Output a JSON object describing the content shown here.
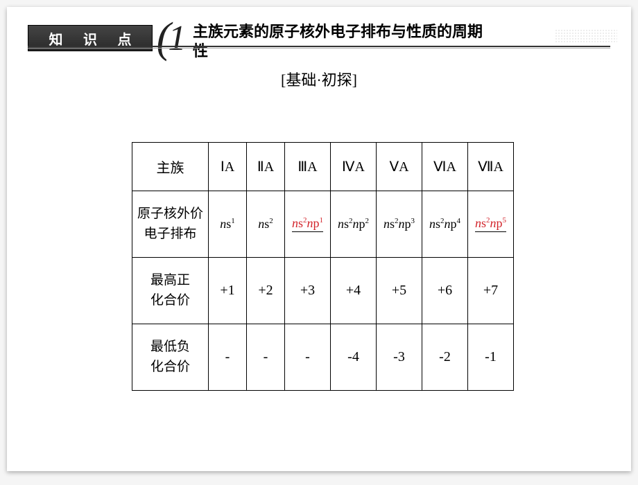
{
  "header": {
    "badge": "知 识 点",
    "number": "1",
    "title": "主族元素的原子核外电子排布与性质的周期性"
  },
  "subtitle": "[基础·初探]",
  "table": {
    "row_header_label": "主族",
    "row_config_label_l1": "原子核外价",
    "row_config_label_l2": "电子排布",
    "row_pos_label_l1": "最高正",
    "row_pos_label_l2": "化合价",
    "row_neg_label_l1": "最低负",
    "row_neg_label_l2": "化合价",
    "groups": [
      "ⅠA",
      "ⅡA",
      "ⅢA",
      "ⅣA",
      "ⅤA",
      "ⅥA",
      "ⅦA"
    ],
    "configs": [
      {
        "html": "ns1",
        "it": "n",
        "s": "s",
        "sup": "1",
        "red": false,
        "underline": false
      },
      {
        "html": "ns2",
        "it": "n",
        "s": "s",
        "sup": "2",
        "red": false,
        "underline": false
      },
      {
        "html": "ns2np1",
        "red": true,
        "underline": true,
        "parts": [
          [
            "n",
            "s",
            "2"
          ],
          [
            "n",
            "p",
            "1"
          ]
        ]
      },
      {
        "html": "ns2np2",
        "red": false,
        "underline": false,
        "parts": [
          [
            "n",
            "s",
            "2"
          ],
          [
            "n",
            "p",
            "2"
          ]
        ]
      },
      {
        "html": "ns2np3",
        "red": false,
        "underline": false,
        "parts": [
          [
            "n",
            "s",
            "2"
          ],
          [
            "n",
            "p",
            "3"
          ]
        ]
      },
      {
        "html": "ns2np4",
        "red": false,
        "underline": false,
        "parts": [
          [
            "n",
            "s",
            "2"
          ],
          [
            "n",
            "p",
            "4"
          ]
        ]
      },
      {
        "html": "ns2np5",
        "red": true,
        "underline": true,
        "parts": [
          [
            "n",
            "s",
            "2"
          ],
          [
            "n",
            "p",
            "5"
          ]
        ]
      }
    ],
    "positive": [
      "+1",
      "+2",
      "+3",
      "+4",
      "+5",
      "+6",
      "+7"
    ],
    "negative": [
      "-",
      "-",
      "-",
      "-4",
      "-3",
      "-2",
      "-1"
    ]
  },
  "styling": {
    "border_color": "#000000",
    "red_color": "#d2232a",
    "background": "#ffffff",
    "title_fontsize": 22,
    "cell_fontsize": 20,
    "config_fontsize": 18
  }
}
